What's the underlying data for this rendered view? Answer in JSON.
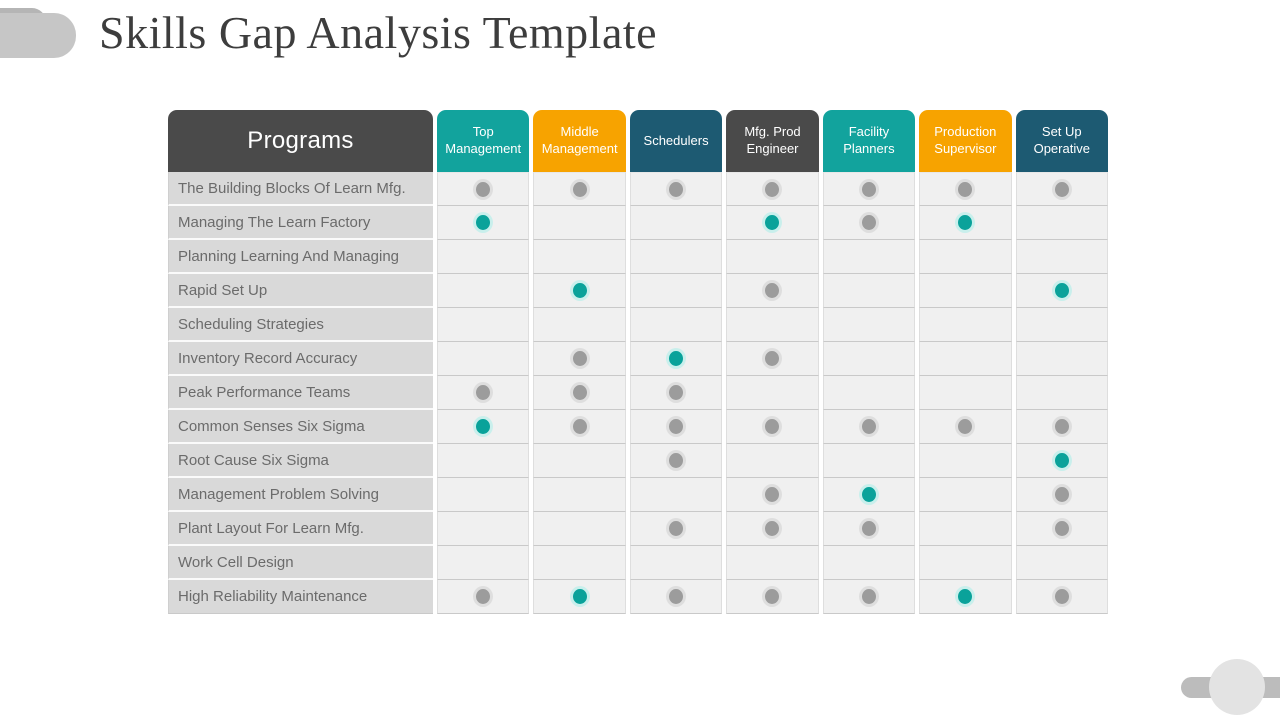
{
  "slide": {
    "title": "Skills Gap Analysis Template"
  },
  "table": {
    "programs_header": "Programs",
    "programs_color": "#4a4a4a",
    "columns": [
      {
        "label": "Top Management",
        "color": "#12a39d"
      },
      {
        "label": "Middle Management",
        "color": "#f7a300"
      },
      {
        "label": "Schedulers",
        "color": "#1d5a72"
      },
      {
        "label": "Mfg. Prod Engineer",
        "color": "#4a4a4a"
      },
      {
        "label": "Facility Planners",
        "color": "#12a39d"
      },
      {
        "label": "Production Supervisor",
        "color": "#f7a300"
      },
      {
        "label": "Set Up Operative",
        "color": "#1d5a72"
      }
    ],
    "rows": [
      {
        "label": "The Building Blocks Of Learn Mfg.",
        "cells": [
          "gray",
          "gray",
          "gray",
          "gray",
          "gray",
          "gray",
          "gray"
        ]
      },
      {
        "label": "Managing The Learn Factory",
        "cells": [
          "teal",
          "",
          "",
          "teal",
          "gray",
          "teal",
          ""
        ]
      },
      {
        "label": "Planning Learning And Managing",
        "cells": [
          "",
          "",
          "",
          "",
          "",
          "",
          ""
        ]
      },
      {
        "label": "Rapid Set Up",
        "cells": [
          "",
          "teal",
          "",
          "gray",
          "",
          "",
          "teal"
        ]
      },
      {
        "label": "Scheduling Strategies",
        "cells": [
          "",
          "",
          "",
          "",
          "",
          "",
          ""
        ]
      },
      {
        "label": "Inventory  Record Accuracy",
        "cells": [
          "",
          "gray",
          "teal",
          "gray",
          "",
          "",
          ""
        ]
      },
      {
        "label": "Peak Performance Teams",
        "cells": [
          "gray",
          "gray",
          "gray",
          "",
          "",
          "",
          ""
        ]
      },
      {
        "label": "Common Senses Six Sigma",
        "cells": [
          "teal",
          "gray",
          "gray",
          "gray",
          "gray",
          "gray",
          "gray"
        ]
      },
      {
        "label": "Root Cause Six Sigma",
        "cells": [
          "",
          "",
          "gray",
          "",
          "",
          "",
          "teal"
        ]
      },
      {
        "label": "Management Problem Solving",
        "cells": [
          "",
          "",
          "",
          "gray",
          "teal",
          "",
          "gray"
        ]
      },
      {
        "label": "Plant Layout For Learn Mfg.",
        "cells": [
          "",
          "",
          "gray",
          "gray",
          "gray",
          "",
          "gray"
        ]
      },
      {
        "label": "Work Cell Design",
        "cells": [
          "",
          "",
          "",
          "",
          "",
          "",
          ""
        ]
      },
      {
        "label": "High Reliability Maintenance",
        "cells": [
          "gray",
          "teal",
          "gray",
          "gray",
          "gray",
          "teal",
          "gray"
        ]
      }
    ],
    "dot_styles": {
      "gray": {
        "fill": "#9c9c9c",
        "halo": "#dedede"
      },
      "teal": {
        "fill": "#0aa29a",
        "halo": "#c9efec"
      }
    }
  }
}
